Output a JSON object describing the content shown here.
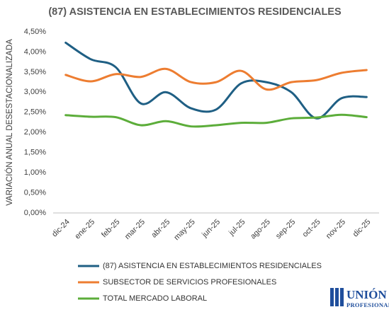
{
  "chart_data": {
    "type": "line",
    "title": "(87) ASISTENCIA EN ESTABLECIMIENTOS RESIDENCIALES",
    "y_label": "VARIACIÓN ANUAL DESESTACIONALIZADA",
    "categories": [
      "dic-24",
      "ene-25",
      "feb-25",
      "mar-25",
      "abr-25",
      "may-25",
      "jun-25",
      "jul-25",
      "ago-25",
      "sep-25",
      "oct-25",
      "nov-25",
      "dic-25"
    ],
    "series": [
      {
        "name": "(87) ASISTENCIA EN ESTABLECIMIENTOS RESIDENCIALES",
        "color": "#1f5f84",
        "values": [
          4.23,
          3.82,
          3.62,
          2.72,
          3.0,
          2.6,
          2.57,
          3.22,
          3.25,
          3.0,
          2.35,
          2.85,
          2.88
        ]
      },
      {
        "name": "SUBSECTOR DE SERVICIOS PROFESIONALES",
        "color": "#ed7d31",
        "values": [
          3.43,
          3.27,
          3.45,
          3.38,
          3.58,
          3.25,
          3.25,
          3.53,
          3.07,
          3.25,
          3.3,
          3.48,
          3.55
        ]
      },
      {
        "name": "TOTAL MERCADO LABORAL",
        "color": "#5cad3a",
        "values": [
          2.43,
          2.39,
          2.38,
          2.18,
          2.28,
          2.15,
          2.18,
          2.24,
          2.24,
          2.35,
          2.37,
          2.44,
          2.38
        ]
      }
    ],
    "ylim": [
      0,
      4.5
    ],
    "yticks": [
      {
        "value": 0,
        "label": "0,00%"
      },
      {
        "value": 0.5,
        "label": "0,50%"
      },
      {
        "value": 1,
        "label": "1,00%"
      },
      {
        "value": 1.5,
        "label": "1,50%"
      },
      {
        "value": 2,
        "label": "2,00%"
      },
      {
        "value": 2.5,
        "label": "2,50%"
      },
      {
        "value": 3,
        "label": "3,00%"
      },
      {
        "value": 3.5,
        "label": "3,50%"
      },
      {
        "value": 4,
        "label": "4,00%"
      },
      {
        "value": 4.5,
        "label": "4,50%"
      }
    ],
    "grid": false,
    "smooth": true
  },
  "logo": {
    "line1": "UNIÓN",
    "line2": "PROFESIONAL"
  }
}
